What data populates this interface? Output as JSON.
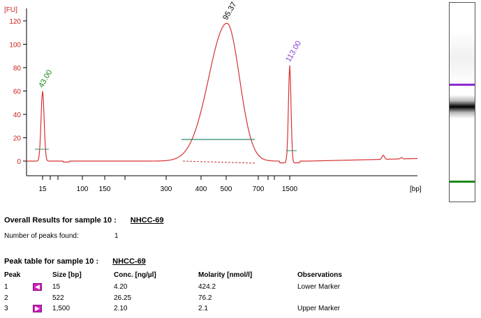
{
  "chart_data": {
    "type": "line",
    "y_unit_label": "[FU]",
    "x_unit_label": "[bp]",
    "y_ticks": [
      0,
      20,
      40,
      60,
      80,
      100,
      120
    ],
    "x_ticks": [
      "15",
      "100",
      "150",
      "300",
      "400",
      "500",
      "700",
      "1500"
    ],
    "ylim": [
      -8,
      125
    ],
    "grid": false,
    "series_color": "#d83030",
    "peaks": [
      {
        "label": "43.00",
        "color": "#1a8a1a",
        "size_bp": 15,
        "height": 60
      },
      {
        "label": "95.37",
        "color": "#000000",
        "size_bp": 522,
        "height": 118
      },
      {
        "label": "113.00",
        "color": "#8a3ad8",
        "size_bp": 1500,
        "height": 82
      }
    ]
  },
  "overall": {
    "title": "Overall Results for sample 10  :",
    "sample": "NHCC-69",
    "peaks_found_label": "Number of peaks found:",
    "peaks_found_value": "1"
  },
  "peak_table": {
    "title": "Peak table for sample 10  :",
    "sample": "NHCC-69",
    "headers": [
      "Peak",
      "Size [bp]",
      "Conc. [ng/µl]",
      "Molarity [nmol/l]",
      "Observations"
    ],
    "rows": [
      {
        "peak": "1",
        "size": "15",
        "conc": "4.20",
        "molarity": "424.2",
        "obs": "Lower Marker",
        "marker": true
      },
      {
        "peak": "2",
        "size": "522",
        "conc": "26.25",
        "molarity": "76.2",
        "obs": "",
        "marker": false
      },
      {
        "peak": "3",
        "size": "1,500",
        "conc": "2.10",
        "molarity": "2.1",
        "obs": "Upper Marker",
        "marker": true
      }
    ]
  },
  "gel_colors": {
    "upper_marker": "#8a2ad0",
    "lower_marker": "#1a8a1a"
  }
}
